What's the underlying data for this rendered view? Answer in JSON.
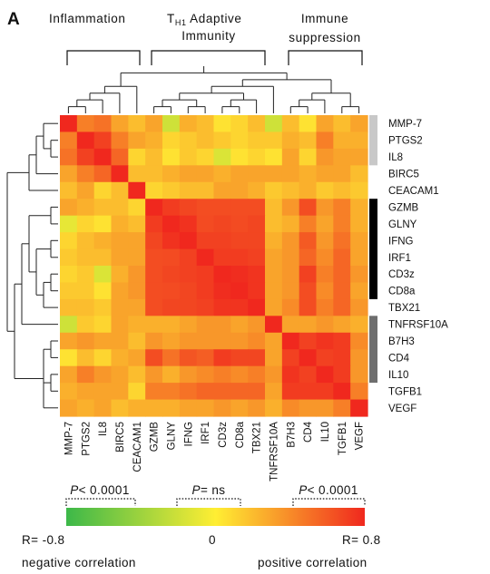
{
  "panel_letter": "A",
  "groups": [
    {
      "label_lines": [
        "Inflammation"
      ]
    },
    {
      "label_main": "T",
      "label_sub": "H1",
      "label_rest": " Adaptive",
      "label_line2": "Immunity"
    },
    {
      "label_lines": [
        "Immune",
        "suppression"
      ]
    }
  ],
  "significance": [
    {
      "p": "P",
      "rel": "< 0.0001"
    },
    {
      "p": "P",
      "rel": "= ns"
    },
    {
      "p": "P",
      "rel": "< 0.0001"
    }
  ],
  "colorbar": {
    "colors": [
      "#3cb849",
      "#ffee33",
      "#f0281e"
    ],
    "min_label": "R=  -0.8",
    "mid_label": "0",
    "max_label": "R=  0.8",
    "neg_text": "negative correlation",
    "pos_text": "positive correlation"
  },
  "chart_data": {
    "type": "heatmap",
    "title": "",
    "scale_min": -0.8,
    "scale_max": 0.8,
    "row_groups": [
      {
        "color": "#c8c8c8",
        "from": 0,
        "to": 2
      },
      {
        "color": "#000000",
        "from": 5,
        "to": 10
      },
      {
        "color": "#6e6e6e",
        "from": 12,
        "to": 15
      }
    ],
    "rows": [
      "MMP-7",
      "PTGS2",
      "IL8",
      "BIRC5",
      "CEACAM1",
      "GZMB",
      "GLNY",
      "IFNG",
      "IRF1",
      "CD3z",
      "CD8a",
      "TBX21",
      "TNFRSF10A",
      "B7H3",
      "CD4",
      "IL10",
      "TGFB1",
      "VEGF"
    ],
    "columns": [
      "MMP-7",
      "PTGS2",
      "IL8",
      "BIRC5",
      "CEACAM1",
      "GZMB",
      "GLNY",
      "IFNG",
      "IRF1",
      "CD3z",
      "CD8a",
      "TBX21",
      "TNFRSF10A",
      "B7H3",
      "CD4",
      "IL10",
      "TGFB1",
      "VEGF"
    ],
    "values": [
      [
        0.8,
        0.45,
        0.5,
        0.3,
        0.2,
        0.3,
        -0.2,
        0.25,
        0.2,
        0.05,
        0.1,
        0.2,
        -0.2,
        0.2,
        0.05,
        0.3,
        0.2,
        0.3
      ],
      [
        0.45,
        0.8,
        0.7,
        0.45,
        0.3,
        0.25,
        0.1,
        0.15,
        0.2,
        0.15,
        0.1,
        0.15,
        0.15,
        0.25,
        0.2,
        0.45,
        0.25,
        0.25
      ],
      [
        0.5,
        0.7,
        0.8,
        0.55,
        0.1,
        0.2,
        0.05,
        0.15,
        0.1,
        -0.15,
        0.05,
        0.1,
        0.05,
        0.3,
        0.1,
        0.35,
        0.3,
        0.3
      ],
      [
        0.3,
        0.45,
        0.55,
        0.8,
        0.2,
        0.2,
        0.25,
        0.3,
        0.3,
        0.25,
        0.3,
        0.3,
        0.3,
        0.3,
        0.25,
        0.3,
        0.3,
        0.2
      ],
      [
        0.2,
        0.3,
        0.1,
        0.2,
        0.8,
        0.1,
        0.15,
        0.2,
        0.2,
        0.3,
        0.3,
        0.25,
        0.15,
        0.2,
        0.25,
        0.15,
        0.2,
        0.15
      ],
      [
        0.3,
        0.25,
        0.2,
        0.2,
        0.1,
        0.8,
        0.72,
        0.68,
        0.65,
        0.65,
        0.65,
        0.65,
        0.2,
        0.35,
        0.65,
        0.35,
        0.45,
        0.25
      ],
      [
        -0.1,
        0.1,
        0.05,
        0.25,
        0.2,
        0.72,
        0.8,
        0.76,
        0.66,
        0.68,
        0.66,
        0.68,
        0.2,
        0.25,
        0.45,
        0.3,
        0.45,
        0.25
      ],
      [
        0.1,
        0.2,
        0.25,
        0.3,
        0.3,
        0.68,
        0.76,
        0.8,
        0.7,
        0.7,
        0.68,
        0.68,
        0.25,
        0.35,
        0.6,
        0.35,
        0.5,
        0.3
      ],
      [
        0.15,
        0.2,
        0.2,
        0.3,
        0.3,
        0.65,
        0.66,
        0.7,
        0.8,
        0.72,
        0.72,
        0.7,
        0.3,
        0.35,
        0.55,
        0.4,
        0.55,
        0.3
      ],
      [
        0.1,
        0.15,
        -0.15,
        0.25,
        0.35,
        0.65,
        0.68,
        0.7,
        0.72,
        0.8,
        0.78,
        0.75,
        0.3,
        0.35,
        0.7,
        0.45,
        0.55,
        0.35
      ],
      [
        0.15,
        0.15,
        0.05,
        0.3,
        0.35,
        0.65,
        0.66,
        0.68,
        0.72,
        0.78,
        0.8,
        0.75,
        0.3,
        0.35,
        0.65,
        0.4,
        0.55,
        0.3
      ],
      [
        0.2,
        0.2,
        0.15,
        0.3,
        0.3,
        0.65,
        0.68,
        0.68,
        0.7,
        0.75,
        0.75,
        0.8,
        0.3,
        0.4,
        0.65,
        0.45,
        0.55,
        0.35
      ],
      [
        -0.2,
        0.15,
        0.1,
        0.3,
        0.25,
        0.25,
        0.25,
        0.3,
        0.35,
        0.35,
        0.3,
        0.35,
        0.8,
        0.3,
        0.3,
        0.35,
        0.3,
        0.25
      ],
      [
        0.3,
        0.35,
        0.3,
        0.3,
        0.2,
        0.35,
        0.3,
        0.35,
        0.35,
        0.35,
        0.35,
        0.4,
        0.3,
        0.8,
        0.7,
        0.75,
        0.72,
        0.4
      ],
      [
        0.05,
        0.2,
        0.1,
        0.25,
        0.3,
        0.65,
        0.5,
        0.62,
        0.58,
        0.72,
        0.68,
        0.68,
        0.3,
        0.7,
        0.8,
        0.7,
        0.72,
        0.35
      ],
      [
        0.3,
        0.45,
        0.35,
        0.3,
        0.2,
        0.35,
        0.25,
        0.35,
        0.4,
        0.45,
        0.4,
        0.45,
        0.35,
        0.75,
        0.7,
        0.8,
        0.72,
        0.35
      ],
      [
        0.25,
        0.3,
        0.3,
        0.3,
        0.1,
        0.45,
        0.45,
        0.5,
        0.55,
        0.55,
        0.55,
        0.55,
        0.3,
        0.72,
        0.72,
        0.72,
        0.8,
        0.45
      ],
      [
        0.3,
        0.25,
        0.3,
        0.2,
        0.25,
        0.25,
        0.25,
        0.3,
        0.3,
        0.35,
        0.3,
        0.35,
        0.25,
        0.4,
        0.35,
        0.35,
        0.45,
        0.8
      ]
    ]
  }
}
